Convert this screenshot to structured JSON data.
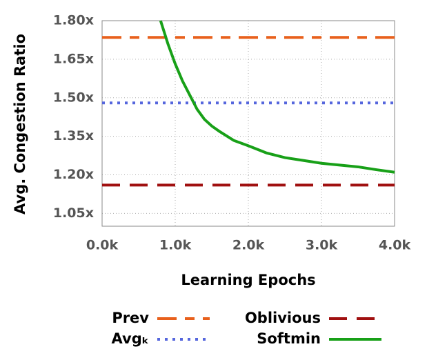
{
  "chart_data": {
    "type": "line",
    "x_label": "Learning Epochs",
    "y_label": "Avg. Congestion Ratio",
    "xlim": [
      0,
      4000
    ],
    "xticks": [
      {
        "value": 0,
        "label": "0.0k"
      },
      {
        "value": 1000,
        "label": "1.0k"
      },
      {
        "value": 2000,
        "label": "2.0k"
      },
      {
        "value": 3000,
        "label": "3.0k"
      },
      {
        "value": 4000,
        "label": "4.0k"
      }
    ],
    "ylim": [
      1.0,
      1.8
    ],
    "yticks": [
      {
        "value": 1.05,
        "label": "1.05x"
      },
      {
        "value": 1.2,
        "label": "1.20x"
      },
      {
        "value": 1.35,
        "label": "1.35x"
      },
      {
        "value": 1.5,
        "label": "1.50x"
      },
      {
        "value": 1.65,
        "label": "1.65x"
      },
      {
        "value": 1.8,
        "label": "1.80x"
      }
    ],
    "grid": true,
    "series": [
      {
        "name": "Prev",
        "color": "#e8601c",
        "dash": "28 12 14 12",
        "x": [
          0,
          4000
        ],
        "values": [
          1.735,
          1.735
        ]
      },
      {
        "name": "Avgₖ",
        "color": "#5566dd",
        "dash": "4 7",
        "x": [
          0,
          4000
        ],
        "values": [
          1.48,
          1.48
        ]
      },
      {
        "name": "Oblivious",
        "color": "#a01010",
        "dash": "26 14",
        "x": [
          0,
          4000
        ],
        "values": [
          1.16,
          1.16
        ]
      },
      {
        "name": "Softmin",
        "color": "#18a018",
        "dash": "none",
        "x": [
          800,
          900,
          1000,
          1100,
          1200,
          1300,
          1400,
          1500,
          1600,
          1800,
          2000,
          2250,
          2500,
          2750,
          3000,
          3250,
          3500,
          3750,
          4000
        ],
        "values": [
          1.8,
          1.71,
          1.632,
          1.565,
          1.51,
          1.455,
          1.416,
          1.39,
          1.37,
          1.334,
          1.313,
          1.285,
          1.267,
          1.256,
          1.245,
          1.238,
          1.231,
          1.22,
          1.21
        ]
      }
    ]
  }
}
